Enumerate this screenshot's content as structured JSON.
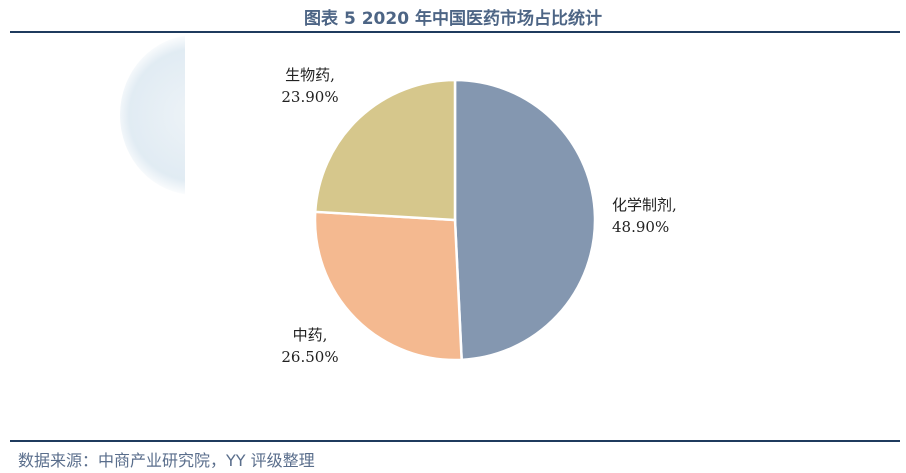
{
  "title": "图表 5 2020 年中国医药市场占比统计",
  "source": "数据来源：中商产业研究院，YY 评级整理",
  "chart_data": {
    "type": "pie",
    "title": "图表 5 2020 年中国医药市场占比统计",
    "start_angle": "top",
    "direction": "clockwise",
    "slices": [
      {
        "label": "化学制剂",
        "value": 48.9,
        "value_label": "48.90%",
        "color": "#8497b0"
      },
      {
        "label": "中药",
        "value": 26.5,
        "value_label": "26.50%",
        "color": "#f4b990"
      },
      {
        "label": "生物药",
        "value": 23.9,
        "value_label": "23.90%",
        "color": "#d6c78c"
      }
    ]
  }
}
